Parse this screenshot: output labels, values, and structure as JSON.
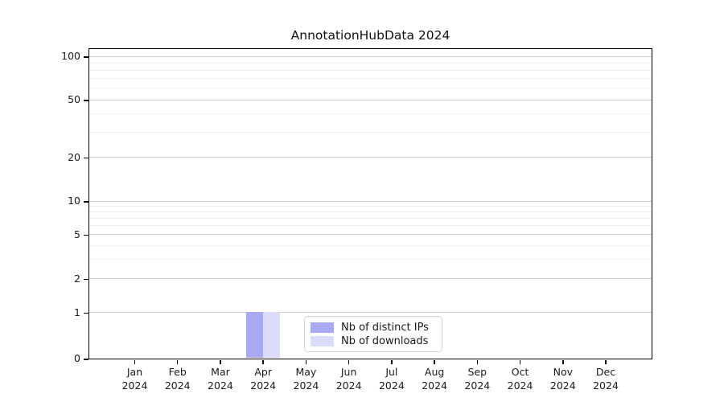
{
  "chart_data": {
    "type": "bar",
    "title": "AnnotationHubData 2024",
    "categories": [
      "Jan",
      "Feb",
      "Mar",
      "Apr",
      "May",
      "Jun",
      "Jul",
      "Aug",
      "Sep",
      "Oct",
      "Nov",
      "Dec"
    ],
    "category_year": "2024",
    "series": [
      {
        "name": "Nb of distinct IPs",
        "color": "#aaaaf4",
        "values": [
          0,
          0,
          0,
          1,
          0,
          0,
          0,
          0,
          0,
          0,
          0,
          0
        ]
      },
      {
        "name": "Nb of downloads",
        "color": "#dcdcfa",
        "values": [
          0,
          0,
          0,
          1,
          0,
          0,
          0,
          0,
          0,
          0,
          0,
          0
        ]
      }
    ],
    "y_axis": {
      "scale": "log-with-linear-zero",
      "ticks": [
        0,
        1,
        2,
        5,
        10,
        20,
        50,
        100
      ],
      "minor_gridlines": [
        3,
        4,
        6,
        7,
        8,
        9,
        30,
        40,
        60,
        70,
        80,
        90
      ],
      "range": [
        0,
        100
      ]
    },
    "x_axis": {
      "label": "",
      "tick_format": "month-over-year"
    },
    "grid": "horizontal",
    "legend": {
      "position": "inside-bottom-center"
    }
  }
}
